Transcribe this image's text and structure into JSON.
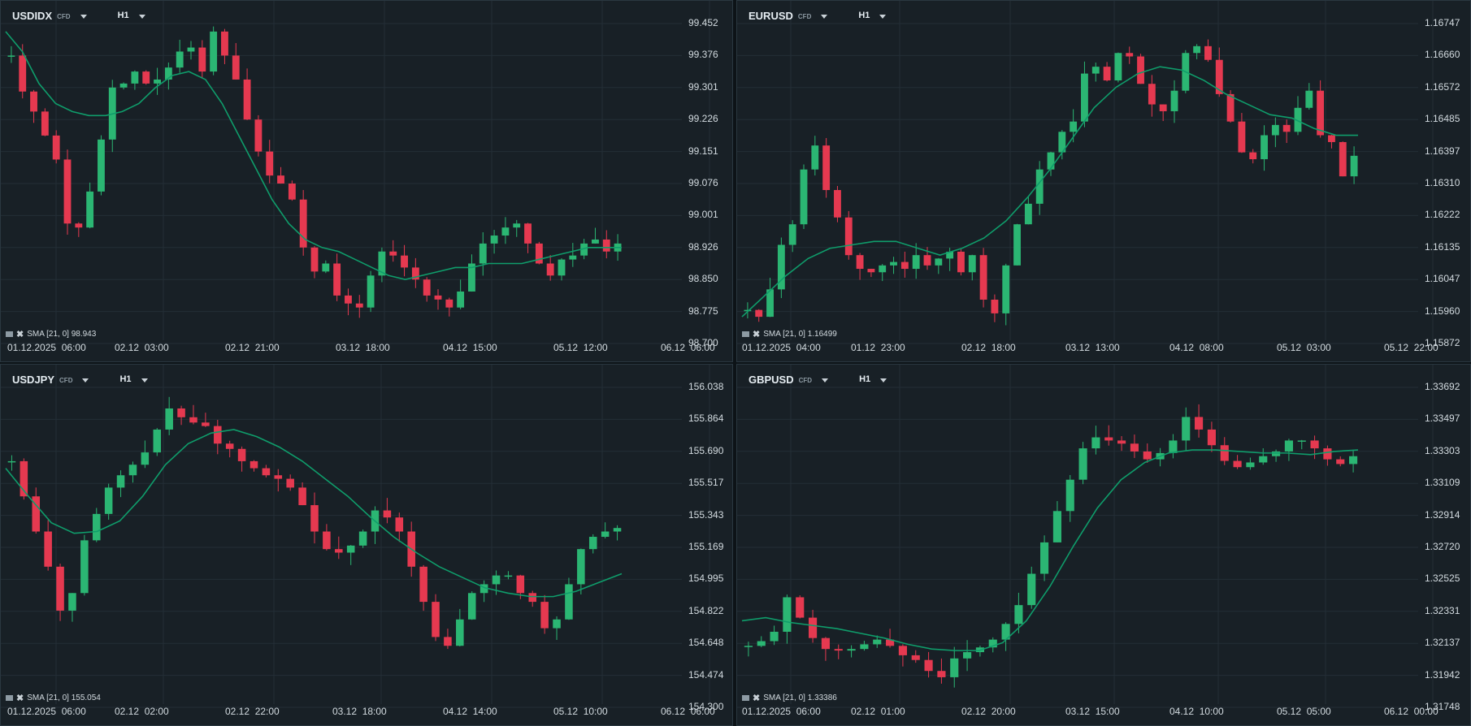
{
  "colors": {
    "background": "#182026",
    "grid": "#232e36",
    "up": "#2bb673",
    "down": "#e53950",
    "sma": "#0f9d6b",
    "text": "#d3dbe0"
  },
  "panels": [
    {
      "symbol": "USDIDX",
      "badge": "CFD",
      "timeframe": "H1",
      "indicator": "SMA [21, 0] 98.943",
      "x_labels": [
        "01.12.2025  06:00",
        "02.12  03:00",
        "02.12  21:00",
        "03.12  18:00",
        "04.12  15:00",
        "05.12  12:00",
        "06.12  06:00"
      ],
      "y_labels": [
        "99.452",
        "99.376",
        "99.301",
        "99.226",
        "99.151",
        "99.076",
        "99.001",
        "98.926",
        "98.850",
        "98.775",
        "98.700"
      ]
    },
    {
      "symbol": "EURUSD",
      "badge": "CFD",
      "timeframe": "H1",
      "indicator": "SMA [21, 0] 1.16499",
      "x_labels": [
        "01.12.2025  04:00",
        "01.12  23:00",
        "02.12  18:00",
        "03.12  13:00",
        "04.12  08:00",
        "05.12  03:00",
        "05.12  22:00"
      ],
      "y_labels": [
        "1.16747",
        "1.16660",
        "1.16572",
        "1.16485",
        "1.16397",
        "1.16310",
        "1.16222",
        "1.16135",
        "1.16047",
        "1.15960",
        "1.15872"
      ]
    },
    {
      "symbol": "USDJPY",
      "badge": "CFD",
      "timeframe": "H1",
      "indicator": "SMA [21, 0] 155.054",
      "x_labels": [
        "01.12.2025  06:00",
        "02.12  02:00",
        "02.12  22:00",
        "03.12  18:00",
        "04.12  14:00",
        "05.12  10:00",
        "06.12  06:00"
      ],
      "y_labels": [
        "156.038",
        "155.864",
        "155.690",
        "155.517",
        "155.343",
        "155.169",
        "154.995",
        "154.822",
        "154.648",
        "154.474",
        "154.300"
      ]
    },
    {
      "symbol": "GBPUSD",
      "badge": "CFD",
      "timeframe": "H1",
      "indicator": "SMA [21, 0] 1.33386",
      "x_labels": [
        "01.12.2025  06:00",
        "02.12  01:00",
        "02.12  20:00",
        "03.12  15:00",
        "04.12  10:00",
        "05.12  05:00",
        "06.12  00:00"
      ],
      "y_labels": [
        "1.33692",
        "1.33497",
        "1.33303",
        "1.33109",
        "1.32914",
        "1.32720",
        "1.32525",
        "1.32331",
        "1.32137",
        "1.31942",
        "1.31748"
      ]
    }
  ],
  "chart_data": [
    {
      "type": "candlestick",
      "symbol": "USDIDX",
      "timeframe": "H1",
      "ylim": [
        98.7,
        99.5
      ],
      "close_path": [
        99.42,
        99.33,
        99.28,
        99.22,
        99.16,
        99.0,
        98.99,
        99.08,
        99.21,
        99.34,
        99.35,
        99.38,
        99.35,
        99.36,
        99.39,
        99.43,
        99.44,
        99.38,
        99.48,
        99.42,
        99.36,
        99.26,
        99.18,
        99.12,
        99.1,
        99.06,
        98.94,
        98.88,
        98.9,
        98.82,
        98.8,
        98.79,
        98.87,
        98.93,
        98.92,
        98.89,
        98.86,
        98.82,
        98.81,
        98.79,
        98.83,
        98.9,
        98.95,
        98.97,
        98.99,
        99.0,
        98.95,
        98.9,
        98.87,
        98.91,
        98.92,
        98.95,
        98.96,
        98.93,
        98.95
      ],
      "sma": [
        99.48,
        99.43,
        99.35,
        99.3,
        99.28,
        99.27,
        99.27,
        99.28,
        99.3,
        99.34,
        99.37,
        99.38,
        99.36,
        99.3,
        99.22,
        99.14,
        99.06,
        99.0,
        98.96,
        98.94,
        98.93,
        98.91,
        98.89,
        98.87,
        98.86,
        98.87,
        98.88,
        98.89,
        98.89,
        98.9,
        98.9,
        98.9,
        98.91,
        98.92,
        98.93,
        98.94,
        98.94,
        98.94
      ]
    },
    {
      "type": "candlestick",
      "symbol": "EURUSD",
      "timeframe": "H1",
      "ylim": [
        1.15872,
        1.16806
      ],
      "close_path": [
        1.1597,
        1.1595,
        1.1603,
        1.1616,
        1.1622,
        1.1638,
        1.1645,
        1.1632,
        1.1624,
        1.1613,
        1.1609,
        1.1608,
        1.161,
        1.1611,
        1.1609,
        1.1613,
        1.161,
        1.1612,
        1.1614,
        1.1608,
        1.1613,
        1.16,
        1.1596,
        1.161,
        1.1622,
        1.1628,
        1.1638,
        1.1643,
        1.1649,
        1.1652,
        1.1666,
        1.1668,
        1.1664,
        1.1672,
        1.1671,
        1.1663,
        1.1657,
        1.1655,
        1.1661,
        1.1672,
        1.1674,
        1.167,
        1.166,
        1.1652,
        1.1643,
        1.1641,
        1.1648,
        1.1651,
        1.1649,
        1.1656,
        1.1661,
        1.1648,
        1.1646,
        1.1636,
        1.1642
      ],
      "sma": [
        1.1595,
        1.1601,
        1.1607,
        1.1612,
        1.1615,
        1.1616,
        1.1617,
        1.1617,
        1.1615,
        1.1613,
        1.1615,
        1.1618,
        1.1623,
        1.163,
        1.1638,
        1.1647,
        1.1656,
        1.1662,
        1.1666,
        1.1668,
        1.1667,
        1.1664,
        1.166,
        1.1657,
        1.1654,
        1.1653,
        1.165,
        1.1648,
        1.1648
      ]
    },
    {
      "type": "candlestick",
      "symbol": "USDJPY",
      "timeframe": "H1",
      "ylim": [
        154.3,
        156.12
      ],
      "close_path": [
        155.7,
        155.5,
        155.3,
        155.1,
        154.85,
        154.95,
        155.25,
        155.4,
        155.55,
        155.62,
        155.68,
        155.75,
        155.88,
        156.0,
        155.95,
        155.92,
        155.9,
        155.8,
        155.77,
        155.7,
        155.66,
        155.62,
        155.6,
        155.55,
        155.45,
        155.3,
        155.2,
        155.18,
        155.22,
        155.3,
        155.42,
        155.38,
        155.3,
        155.1,
        154.9,
        154.7,
        154.65,
        154.8,
        154.95,
        155.0,
        155.05,
        155.05,
        154.95,
        154.9,
        154.75,
        154.8,
        155.0,
        155.2,
        155.27,
        155.3,
        155.32
      ],
      "sma": [
        155.66,
        155.5,
        155.35,
        155.29,
        155.3,
        155.36,
        155.5,
        155.68,
        155.8,
        155.86,
        155.88,
        155.84,
        155.78,
        155.7,
        155.6,
        155.5,
        155.38,
        155.27,
        155.18,
        155.1,
        155.04,
        154.98,
        154.95,
        154.93,
        154.93,
        154.96,
        155.01,
        155.06
      ]
    },
    {
      "type": "candlestick",
      "symbol": "GBPUSD",
      "timeframe": "H1",
      "ylim": [
        1.31748,
        1.33789
      ],
      "close_path": [
        1.3214,
        1.3217,
        1.3223,
        1.3245,
        1.3232,
        1.3219,
        1.3212,
        1.3211,
        1.3212,
        1.3215,
        1.3218,
        1.3214,
        1.3208,
        1.3205,
        1.3198,
        1.3194,
        1.3206,
        1.321,
        1.3213,
        1.3218,
        1.3228,
        1.324,
        1.326,
        1.328,
        1.33,
        1.332,
        1.334,
        1.3347,
        1.3345,
        1.3343,
        1.3338,
        1.3333,
        1.3337,
        1.3345,
        1.336,
        1.3352,
        1.3342,
        1.3332,
        1.3328,
        1.3331,
        1.3335,
        1.3338,
        1.3345,
        1.3345,
        1.334,
        1.3333,
        1.333,
        1.3335
      ],
      "sma": [
        1.323,
        1.3232,
        1.3229,
        1.3227,
        1.3225,
        1.3222,
        1.3219,
        1.3215,
        1.3212,
        1.3211,
        1.3211,
        1.3216,
        1.323,
        1.3252,
        1.3278,
        1.3302,
        1.332,
        1.3331,
        1.3337,
        1.3339,
        1.3339,
        1.3338,
        1.3337,
        1.3337,
        1.3336,
        1.3338,
        1.3339
      ]
    }
  ]
}
